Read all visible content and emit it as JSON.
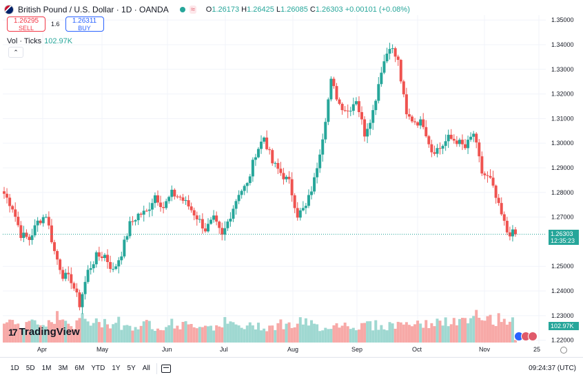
{
  "header": {
    "title": "British Pound / U.S. Dollar · 1D · OANDA",
    "ohlc": {
      "o_label": "O",
      "o": "1.26173",
      "h_label": "H",
      "h": "1.26425",
      "l_label": "L",
      "l": "1.26085",
      "c_label": "C",
      "c": "1.26303",
      "change": "+0.00101 (+0.08%)"
    },
    "market_status_icon": "wave-icon"
  },
  "trade": {
    "sell_price": "1.26295",
    "sell_label": "SELL",
    "spread": "1.6",
    "buy_price": "1.26311",
    "buy_label": "BUY"
  },
  "volume_legend": {
    "label": "Vol · Ticks",
    "value": "102.97K"
  },
  "price_tag": {
    "value": "1.26303",
    "countdown": "12:35:23"
  },
  "volume_tag": "102.97K",
  "branding": {
    "name": "TradingView",
    "logo_text": "17"
  },
  "bottom_bar": {
    "timeframes": [
      "1D",
      "5D",
      "1M",
      "3M",
      "6M",
      "YTD",
      "1Y",
      "5Y",
      "All"
    ],
    "clock": "09:24:37 (UTC)"
  },
  "colors": {
    "up": "#26a69a",
    "down": "#ef5350",
    "vol_up": "#9fd8d1",
    "vol_down": "#f7a9a7",
    "grid": "#f0f3fa"
  },
  "chart_data": {
    "type": "candlestick",
    "y_axis_labels": [
      "1.35000",
      "1.34000",
      "1.33000",
      "1.32000",
      "1.31000",
      "1.30000",
      "1.29000",
      "1.28000",
      "1.27000",
      "1.25000",
      "1.24000",
      "1.23000",
      "1.22000"
    ],
    "ylim": [
      1.2185,
      1.352
    ],
    "x_axis_labels": [
      "Apr",
      "May",
      "Jun",
      "Jul",
      "Aug",
      "Sep",
      "Oct",
      "Nov",
      "25"
    ],
    "anchors": [
      [
        1.2795,
        70
      ],
      [
        1.274,
        80
      ],
      [
        1.263,
        65
      ],
      [
        1.261,
        85
      ],
      [
        1.268,
        60
      ],
      [
        1.271,
        75
      ],
      [
        1.256,
        90
      ],
      [
        1.2465,
        70
      ],
      [
        1.2445,
        60
      ],
      [
        1.2345,
        95
      ],
      [
        1.248,
        65
      ],
      [
        1.254,
        70
      ],
      [
        1.2545,
        65
      ],
      [
        1.248,
        75
      ],
      [
        1.2555,
        60
      ],
      [
        1.267,
        55
      ],
      [
        1.271,
        60
      ],
      [
        1.272,
        65
      ],
      [
        1.279,
        55
      ],
      [
        1.274,
        60
      ],
      [
        1.2795,
        65
      ],
      [
        1.278,
        60
      ],
      [
        1.2745,
        55
      ],
      [
        1.27,
        65
      ],
      [
        1.265,
        60
      ],
      [
        1.269,
        58
      ],
      [
        1.262,
        70
      ],
      [
        1.271,
        60
      ],
      [
        1.28,
        55
      ],
      [
        1.283,
        55
      ],
      [
        1.296,
        60
      ],
      [
        1.3025,
        55
      ],
      [
        1.292,
        60
      ],
      [
        1.288,
        65
      ],
      [
        1.284,
        60
      ],
      [
        1.271,
        70
      ],
      [
        1.274,
        65
      ],
      [
        1.285,
        55
      ],
      [
        1.303,
        55
      ],
      [
        1.325,
        60
      ],
      [
        1.316,
        65
      ],
      [
        1.313,
        60
      ],
      [
        1.318,
        55
      ],
      [
        1.304,
        65
      ],
      [
        1.313,
        60
      ],
      [
        1.33,
        55
      ],
      [
        1.34,
        60
      ],
      [
        1.333,
        65
      ],
      [
        1.311,
        70
      ],
      [
        1.309,
        60
      ],
      [
        1.308,
        65
      ],
      [
        1.297,
        70
      ],
      [
        1.298,
        68
      ],
      [
        1.302,
        70
      ],
      [
        1.301,
        75
      ],
      [
        1.298,
        70
      ],
      [
        1.304,
        90
      ],
      [
        1.288,
        80
      ],
      [
        1.285,
        80
      ],
      [
        1.274,
        80
      ],
      [
        1.264,
        85
      ],
      [
        1.263,
        10
      ]
    ]
  }
}
